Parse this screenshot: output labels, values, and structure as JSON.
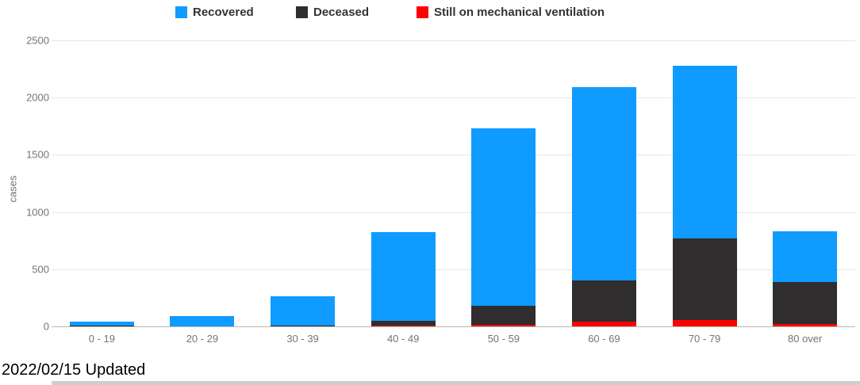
{
  "legend": {
    "items": [
      {
        "label": "Recovered",
        "color": "#0f9bff"
      },
      {
        "label": "Deceased",
        "color": "#2f2d2d"
      },
      {
        "label": "Still on mechanical ventilation",
        "color": "#ff0000"
      }
    ]
  },
  "chart_data": {
    "type": "bar",
    "stacked": true,
    "title": "",
    "xlabel": "",
    "ylabel": "cases",
    "ylim": [
      0,
      2500
    ],
    "yticks": [
      0,
      500,
      1000,
      1500,
      2000,
      2500
    ],
    "grid": true,
    "legend_position": "top",
    "categories": [
      "0 - 19",
      "20 - 29",
      "30 - 39",
      "40 - 49",
      "50 - 59",
      "60 - 69",
      "70 - 79",
      "80 over"
    ],
    "series": [
      {
        "name": "Still on mechanical ventilation",
        "color": "#ff0000",
        "values": [
          8,
          0,
          0,
          8,
          17,
          40,
          58,
          19
        ]
      },
      {
        "name": "Deceased",
        "color": "#2f2d2d",
        "values": [
          2,
          0,
          8,
          42,
          160,
          360,
          710,
          370
        ]
      },
      {
        "name": "Recovered",
        "color": "#0f9bff",
        "values": [
          30,
          90,
          253,
          772,
          1554,
          1695,
          1510,
          441
        ]
      }
    ],
    "totals": [
      40,
      90,
      261,
      822,
      1731,
      2095,
      2278,
      830
    ]
  },
  "footer": {
    "updated": "2022/02/15 Updated"
  }
}
